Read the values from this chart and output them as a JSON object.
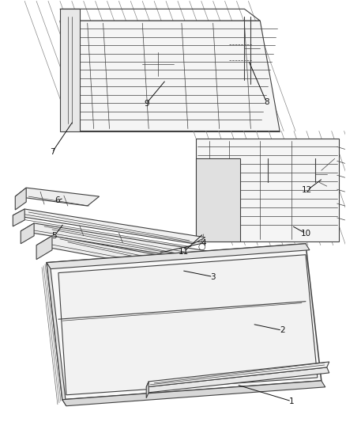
{
  "background_color": "#ffffff",
  "line_color": "#404040",
  "label_color": "#111111",
  "figsize": [
    4.38,
    5.33
  ],
  "dpi": 100,
  "lw_thin": 0.5,
  "lw_med": 0.8,
  "lw_thick": 1.1
}
